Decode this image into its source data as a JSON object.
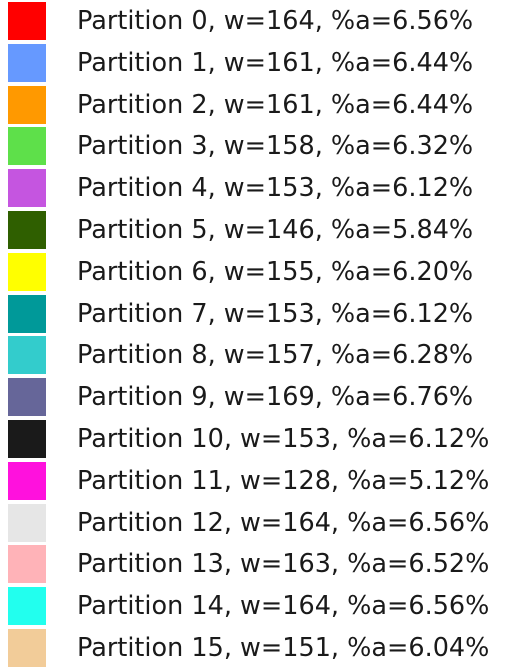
{
  "chart_data": {
    "type": "legend",
    "legend": {
      "placement": "left",
      "entries": [
        {
          "label": "Partition 0, w=164, %a=6.56%",
          "color": "#ff0000",
          "w": 164,
          "percent_a": 6.56
        },
        {
          "label": "Partition 1, w=161, %a=6.44%",
          "color": "#6699ff",
          "w": 161,
          "percent_a": 6.44
        },
        {
          "label": "Partition 2, w=161, %a=6.44%",
          "color": "#ff9900",
          "w": 161,
          "percent_a": 6.44
        },
        {
          "label": "Partition 3, w=158, %a=6.32%",
          "color": "#5ee04a",
          "w": 158,
          "percent_a": 6.32
        },
        {
          "label": "Partition 4, w=153, %a=6.12%",
          "color": "#c555e0",
          "w": 153,
          "percent_a": 6.12
        },
        {
          "label": "Partition 5, w=146, %a=5.84%",
          "color": "#2f5f00",
          "w": 146,
          "percent_a": 5.84
        },
        {
          "label": "Partition 6, w=155, %a=6.20%",
          "color": "#ffff00",
          "w": 155,
          "percent_a": 6.2
        },
        {
          "label": "Partition 7, w=153, %a=6.12%",
          "color": "#009999",
          "w": 153,
          "percent_a": 6.12
        },
        {
          "label": "Partition 8, w=157, %a=6.28%",
          "color": "#33cccc",
          "w": 157,
          "percent_a": 6.28
        },
        {
          "label": "Partition 9, w=169, %a=6.76%",
          "color": "#666699",
          "w": 169,
          "percent_a": 6.76
        },
        {
          "label": "Partition 10, w=153, %a=6.12%",
          "color": "#1a1a1a",
          "w": 153,
          "percent_a": 6.12
        },
        {
          "label": "Partition 11, w=128, %a=5.12%",
          "color": "#ff11dd",
          "w": 128,
          "percent_a": 5.12
        },
        {
          "label": "Partition 12, w=164, %a=6.56%",
          "color": "#e6e6e6",
          "w": 164,
          "percent_a": 6.56
        },
        {
          "label": "Partition 13, w=163, %a=6.52%",
          "color": "#ffb3b8",
          "w": 163,
          "percent_a": 6.52
        },
        {
          "label": "Partition 14, w=164, %a=6.56%",
          "color": "#22ffee",
          "w": 164,
          "percent_a": 6.56
        },
        {
          "label": "Partition 15, w=151, %a=6.04%",
          "color": "#f2cc99",
          "w": 151,
          "percent_a": 6.04
        }
      ]
    }
  }
}
